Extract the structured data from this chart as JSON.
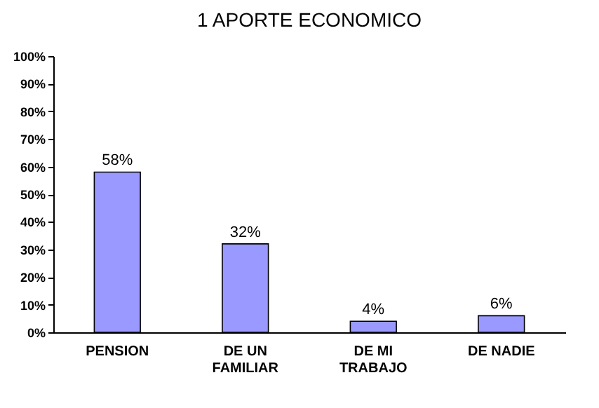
{
  "chart_data": {
    "type": "bar",
    "title": "1  APORTE ECONOMICO",
    "categories": [
      "PENSION",
      "DE UN\nFAMILIAR",
      "DE MI\nTRABAJO",
      "DE NADIE"
    ],
    "values": [
      58,
      32,
      4,
      6
    ],
    "color": "#9999ff",
    "value_labels": [
      "58%",
      "32%",
      "4%",
      "6%"
    ],
    "ylim": [
      0,
      100
    ],
    "yticks": [
      {
        "value": 0,
        "label": "0%"
      },
      {
        "value": 10,
        "label": "10%"
      },
      {
        "value": 20,
        "label": "20%"
      },
      {
        "value": 30,
        "label": "30%"
      },
      {
        "value": 40,
        "label": "40%"
      },
      {
        "value": 50,
        "label": "50%"
      },
      {
        "value": 60,
        "label": "60%"
      },
      {
        "value": 70,
        "label": "70%"
      },
      {
        "value": 80,
        "label": "80%"
      },
      {
        "value": 90,
        "label": "90%"
      },
      {
        "value": 100,
        "label": "100%"
      }
    ],
    "grid": false
  }
}
